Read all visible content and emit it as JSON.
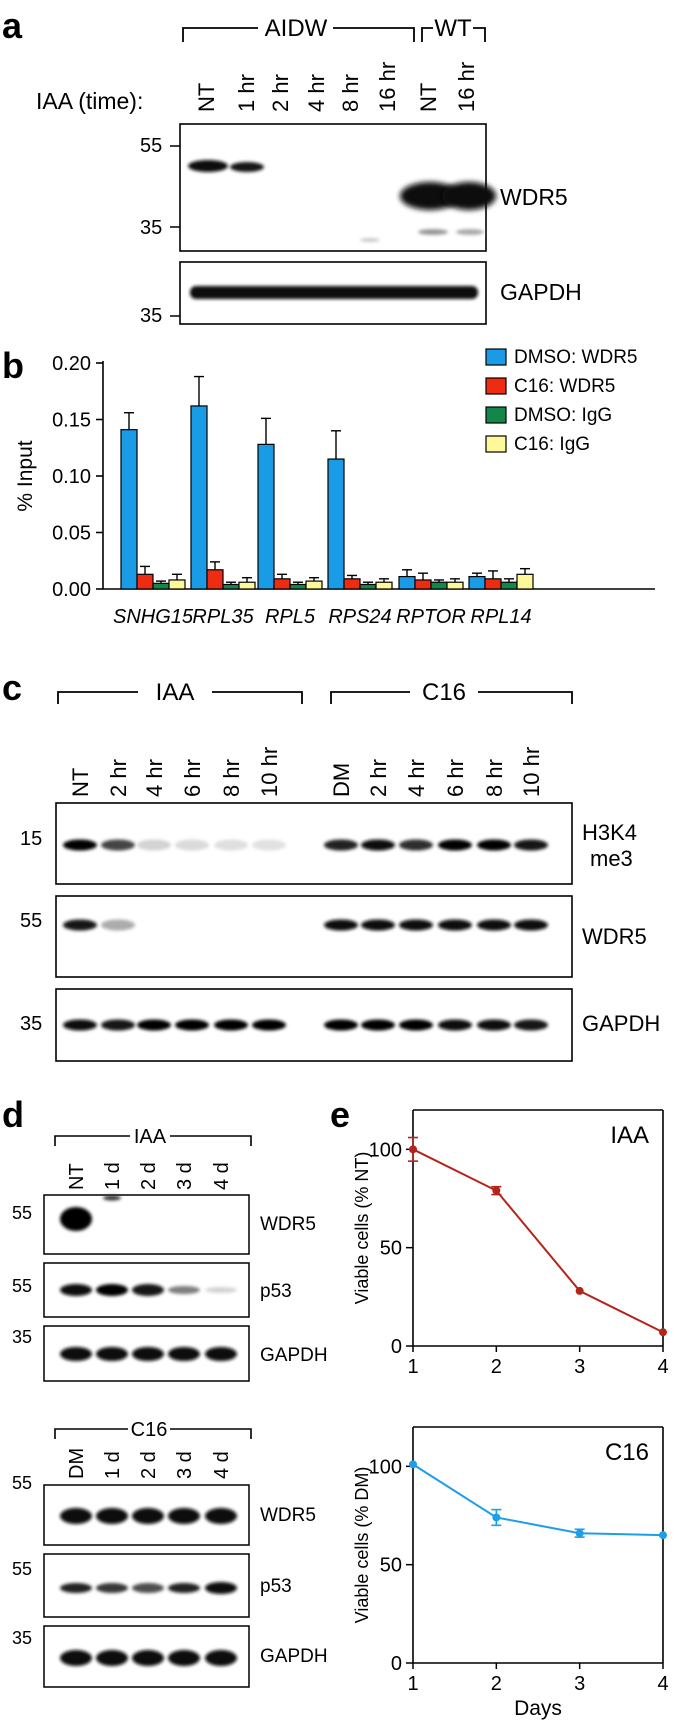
{
  "panel_a": {
    "letter": "a",
    "group_aidw": "AIDW",
    "group_wt": "WT",
    "row_label": "IAA (time):",
    "lanes": [
      "NT",
      "1 hr",
      "2 hr",
      "4 hr",
      "8 hr",
      "16 hr",
      "NT",
      "16 hr"
    ],
    "mw_top": [
      "55",
      "35"
    ],
    "mw_bottom": "35",
    "label_wdr5": "WDR5",
    "label_gapdh": "GAPDH"
  },
  "panel_b": {
    "letter": "b",
    "legend": [
      "DMSO: WDR5",
      "C16: WDR5",
      "DMSO: IgG",
      "C16: IgG"
    ]
  },
  "panel_c": {
    "letter": "c",
    "group_iaa": "IAA",
    "group_c16": "C16",
    "lanes": [
      "NT",
      "2 hr",
      "4 hr",
      "6 hr",
      "8 hr",
      "10 hr",
      "DM",
      "2 hr",
      "4 hr",
      "6 hr",
      "8 hr",
      "10 hr"
    ],
    "mw": [
      "15",
      "55",
      "35"
    ],
    "label_h3k4_1": "H3K4",
    "label_h3k4_2": "me3",
    "label_wdr5": "WDR5",
    "label_gapdh": "GAPDH"
  },
  "panel_d": {
    "letter": "d",
    "group_iaa": "IAA",
    "group_c16": "C16",
    "lanes_iaa": [
      "NT",
      "1 d",
      "2 d",
      "3 d",
      "4 d"
    ],
    "lanes_c16": [
      "DM",
      "1 d",
      "2 d",
      "3 d",
      "4 d"
    ],
    "mw": [
      "55",
      "55",
      "35"
    ],
    "label_wdr5": "WDR5",
    "label_p53": "p53",
    "label_gapdh": "GAPDH"
  },
  "panel_e": {
    "letter": "e"
  },
  "colors": {
    "blue": "#1a9be6",
    "red": "#ee2c12",
    "green": "#13864a",
    "yellow": "#fdf89a",
    "iaa_line": "#b3251b",
    "c16_line": "#1c9ee9"
  },
  "chart_data": [
    {
      "type": "bar",
      "ylabel": "% Input",
      "ylim": [
        0,
        0.2
      ],
      "yticks": [
        "0.00",
        "0.05",
        "0.10",
        "0.15",
        "0.20"
      ],
      "categories": [
        "SNHG15",
        "RPL35",
        "RPL5",
        "RPS24",
        "RPTOR",
        "RPL14"
      ],
      "series": [
        {
          "name": "DMSO: WDR5",
          "values": [
            0.141,
            0.162,
            0.128,
            0.115,
            0.011,
            0.011
          ],
          "errors": [
            0.015,
            0.026,
            0.023,
            0.025,
            0.006,
            0.003
          ]
        },
        {
          "name": "C16: WDR5",
          "values": [
            0.013,
            0.017,
            0.009,
            0.009,
            0.008,
            0.009
          ],
          "errors": [
            0.007,
            0.007,
            0.004,
            0.003,
            0.006,
            0.007
          ]
        },
        {
          "name": "DMSO: IgG",
          "values": [
            0.005,
            0.004,
            0.004,
            0.004,
            0.006,
            0.006
          ],
          "errors": [
            0.002,
            0.002,
            0.002,
            0.002,
            0.002,
            0.003
          ]
        },
        {
          "name": "C16: IgG",
          "values": [
            0.008,
            0.006,
            0.007,
            0.006,
            0.006,
            0.013
          ],
          "errors": [
            0.005,
            0.004,
            0.003,
            0.003,
            0.003,
            0.005
          ]
        }
      ],
      "legend_position": "top-right"
    },
    {
      "type": "line",
      "annotation": "IAA",
      "ylabel": "Viable cells (% NT)",
      "x": [
        1,
        2,
        3,
        4
      ],
      "xticks": [
        "1",
        "2",
        "3",
        "4"
      ],
      "yticks": [
        "0",
        "50",
        "100"
      ],
      "ylim": [
        0,
        120
      ],
      "series": [
        {
          "values": [
            100,
            79,
            28,
            7
          ],
          "errors": [
            6,
            2,
            0,
            0
          ]
        }
      ]
    },
    {
      "type": "line",
      "annotation": "C16",
      "ylabel": "Viable cells (% DM)",
      "xlabel": "Days",
      "x": [
        1,
        2,
        3,
        4
      ],
      "xticks": [
        "1",
        "2",
        "3",
        "4"
      ],
      "yticks": [
        "0",
        "50",
        "100"
      ],
      "ylim": [
        0,
        120
      ],
      "series": [
        {
          "values": [
            101,
            74,
            66,
            65
          ],
          "errors": [
            0,
            4,
            2,
            0
          ]
        }
      ]
    }
  ]
}
